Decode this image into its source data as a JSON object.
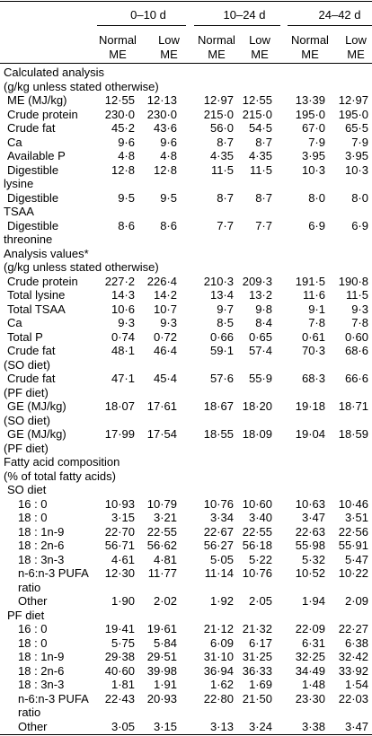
{
  "table": {
    "groups": [
      "0–10 d",
      "10–24 d",
      "24–42 d"
    ],
    "subheaders": [
      [
        "Normal",
        "ME"
      ],
      [
        "Low",
        "ME"
      ],
      [
        "Normal",
        "ME"
      ],
      [
        "Low",
        "ME"
      ],
      [
        "Normal",
        "ME"
      ],
      [
        "Low",
        "ME"
      ]
    ],
    "rows": [
      {
        "label": [
          "Calculated analysis",
          "(g/kg unless stated otherwise)"
        ]
      },
      {
        "label": [
          "ME (MJ/kg)"
        ],
        "values": [
          "12·55",
          "12·13",
          "12·97",
          "12·55",
          "13·39",
          "12·97"
        ]
      },
      {
        "label": [
          "Crude protein"
        ],
        "values": [
          "230·0",
          "230·0",
          "215·0",
          "215·0",
          "195·0",
          "195·0"
        ]
      },
      {
        "label": [
          "Crude fat"
        ],
        "values": [
          "45·2",
          "43·6",
          "56·0",
          "54·5",
          "67·0",
          "65·5"
        ]
      },
      {
        "label": [
          "Ca"
        ],
        "values": [
          "9·6",
          "9·6",
          "8·7",
          "8·7",
          "7·9",
          "7·9"
        ]
      },
      {
        "label": [
          "Available P"
        ],
        "values": [
          "4·8",
          "4·8",
          "4·35",
          "4·35",
          "3·95",
          "3·95"
        ]
      },
      {
        "label": [
          "Digestible",
          "lysine"
        ],
        "values": [
          "12·8",
          "12·8",
          "11·5",
          "11·5",
          "10·3",
          "10·3"
        ]
      },
      {
        "label": [
          "Digestible",
          "TSAA"
        ],
        "values": [
          "9·5",
          "9·5",
          "8·7",
          "8·7",
          "8·0",
          "8·0"
        ]
      },
      {
        "label": [
          "Digestible",
          "threonine"
        ],
        "values": [
          "8·6",
          "8·6",
          "7·7",
          "7·7",
          "6·9",
          "6·9"
        ]
      },
      {
        "label": [
          "Analysis values*",
          "(g/kg unless stated otherwise)"
        ]
      },
      {
        "label": [
          "Crude protein"
        ],
        "values": [
          "227·2",
          "226·4",
          "210·3",
          "209·3",
          "191·5",
          "190·8"
        ]
      },
      {
        "label": [
          "Total lysine"
        ],
        "values": [
          "14·3",
          "14·2",
          "13·4",
          "13·2",
          "11·6",
          "11·5"
        ]
      },
      {
        "label": [
          "Total TSAA"
        ],
        "values": [
          "10·6",
          "10·7",
          "9·7",
          "9·8",
          "9·1",
          "9·3"
        ]
      },
      {
        "label": [
          "Ca"
        ],
        "values": [
          "9·3",
          "9·3",
          "8·5",
          "8·4",
          "7·8",
          "7·8"
        ]
      },
      {
        "label": [
          "Total P"
        ],
        "values": [
          "0·74",
          "0·72",
          "0·66",
          "0·65",
          "0·61",
          "0·60"
        ]
      },
      {
        "label": [
          "Crude fat",
          "(SO diet)"
        ],
        "values": [
          "48·1",
          "46·4",
          "59·1",
          "57·4",
          "70·3",
          "68·6"
        ]
      },
      {
        "label": [
          "Crude fat",
          "(PF diet)"
        ],
        "values": [
          "47·1",
          "45·4",
          "57·6",
          "55·9",
          "68·3",
          "66·6"
        ]
      },
      {
        "label": [
          "GE (MJ/kg)",
          "(SO diet)"
        ],
        "values": [
          "18·07",
          "17·61",
          "18·67",
          "18·20",
          "19·18",
          "18·71"
        ]
      },
      {
        "label": [
          "GE (MJ/kg)",
          "(PF diet)"
        ],
        "values": [
          "17·99",
          "17·54",
          "18·55",
          "18·09",
          "19·04",
          "18·59"
        ]
      },
      {
        "label": [
          "Fatty acid composition",
          "(% of total fatty acids)"
        ]
      },
      {
        "label": [
          "SO diet"
        ]
      },
      {
        "label": [
          "16 : 0"
        ],
        "values": [
          "10·93",
          "10·79",
          "10·76",
          "10·60",
          "10·63",
          "10·46"
        ]
      },
      {
        "label": [
          "18 : 0"
        ],
        "values": [
          "3·15",
          "3·21",
          "3·34",
          "3·40",
          "3·47",
          "3·51"
        ]
      },
      {
        "label": [
          "18 : 1n-9"
        ],
        "values": [
          "22·70",
          "22·55",
          "22·67",
          "22·55",
          "22·63",
          "22·56"
        ]
      },
      {
        "label": [
          "18 : 2n-6"
        ],
        "values": [
          "56·71",
          "56·62",
          "56·27",
          "56·18",
          "55·98",
          "55·91"
        ]
      },
      {
        "label": [
          "18 : 3n-3"
        ],
        "values": [
          "4·61",
          "4·81",
          "5·05",
          "5·22",
          "5·32",
          "5·47"
        ]
      },
      {
        "label": [
          "n-6:n-3 PUFA",
          "ratio"
        ],
        "values": [
          "12·30",
          "11·77",
          "11·14",
          "10·76",
          "10·52",
          "10·22"
        ]
      },
      {
        "label": [
          "Other"
        ],
        "values": [
          "1·90",
          "2·02",
          "1·92",
          "2·05",
          "1·94",
          "2·09"
        ]
      },
      {
        "label": [
          "PF diet"
        ]
      },
      {
        "label": [
          "16 : 0"
        ],
        "values": [
          "19·41",
          "19·61",
          "21·12",
          "21·32",
          "22·09",
          "22·27"
        ]
      },
      {
        "label": [
          "18 : 0"
        ],
        "values": [
          "5·75",
          "5·84",
          "6·09",
          "6·17",
          "6·31",
          "6·38"
        ]
      },
      {
        "label": [
          "18 : 1n-9"
        ],
        "values": [
          "29·38",
          "29·51",
          "31·10",
          "31·25",
          "32·25",
          "32·42"
        ]
      },
      {
        "label": [
          "18 : 2n-6"
        ],
        "values": [
          "40·60",
          "39·98",
          "36·94",
          "36·33",
          "34·49",
          "33·92"
        ]
      },
      {
        "label": [
          "18 : 3n-3"
        ],
        "values": [
          "1·81",
          "1·91",
          "1·62",
          "1·69",
          "1·48",
          "1·54"
        ]
      },
      {
        "label": [
          "n-6:n-3 PUFA",
          "ratio"
        ],
        "values": [
          "22·43",
          "20·93",
          "22·80",
          "21·50",
          "23·30",
          "22·03"
        ]
      },
      {
        "label": [
          "Other"
        ],
        "values": [
          "3·05",
          "3·15",
          "3·13",
          "3·24",
          "3·38",
          "3·47"
        ]
      }
    ]
  }
}
